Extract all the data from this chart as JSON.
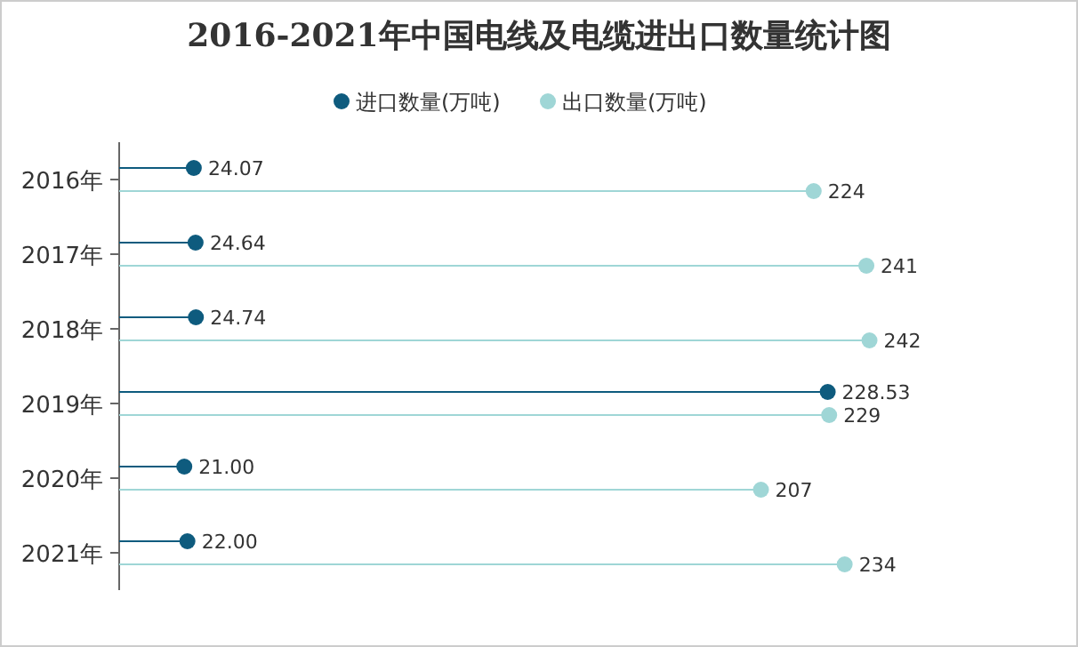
{
  "chart_data": {
    "type": "lollipop",
    "orientation": "horizontal",
    "title": "2016-2021年中国电线及电缆进出口数量统计图",
    "categories": [
      "2016年",
      "2017年",
      "2018年",
      "2019年",
      "2020年",
      "2021年"
    ],
    "legend": "top",
    "marker": "circle",
    "series": [
      {
        "name": "进口数量(万吨)",
        "color": "#0e5b7e",
        "values": [
          24.07,
          24.64,
          24.74,
          228.53,
          21.0,
          22.0
        ],
        "value_labels": [
          "24.07",
          "24.64",
          "24.74",
          "228.53",
          "21.00",
          "22.00"
        ]
      },
      {
        "name": "出口数量(万吨)",
        "color": "#9fd6d6",
        "values": [
          224,
          241,
          242,
          229,
          207,
          234
        ],
        "value_labels": [
          "224",
          "241",
          "242",
          "229",
          "207",
          "234"
        ]
      }
    ]
  }
}
